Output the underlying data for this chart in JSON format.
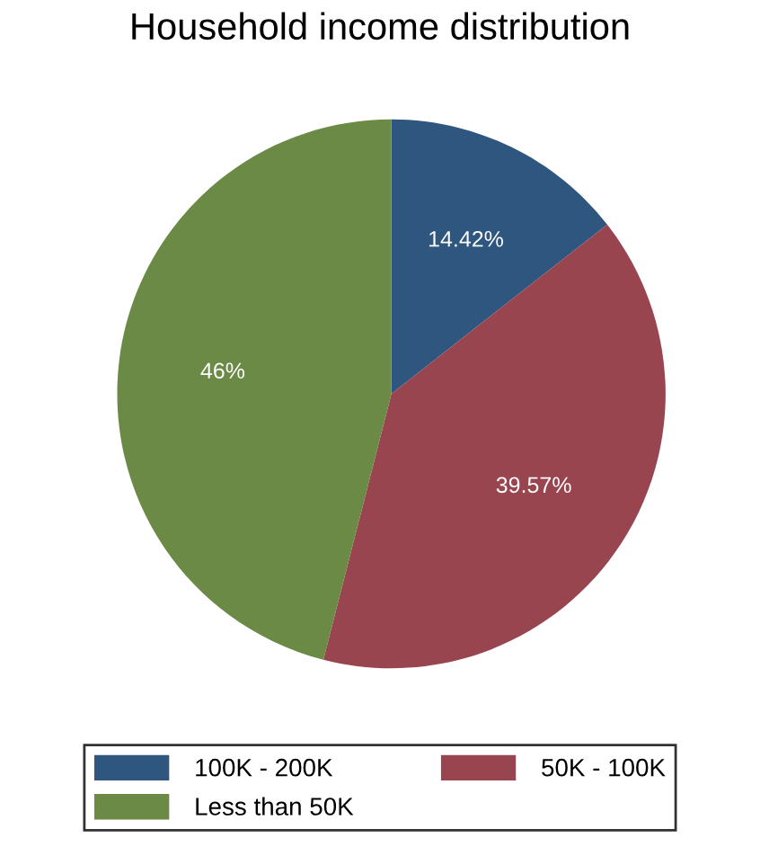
{
  "chart_data": {
    "type": "pie",
    "title": "Household income distribution",
    "categories": [
      "100K - 200K",
      "50K - 100K",
      "Less than 50K"
    ],
    "values": [
      14.42,
      39.57,
      46.01
    ],
    "value_labels": [
      "14.42%",
      "39.57%",
      "46%"
    ],
    "colors": [
      "#2f567e",
      "#994550",
      "#6a8a45"
    ],
    "legend": "bottom"
  }
}
